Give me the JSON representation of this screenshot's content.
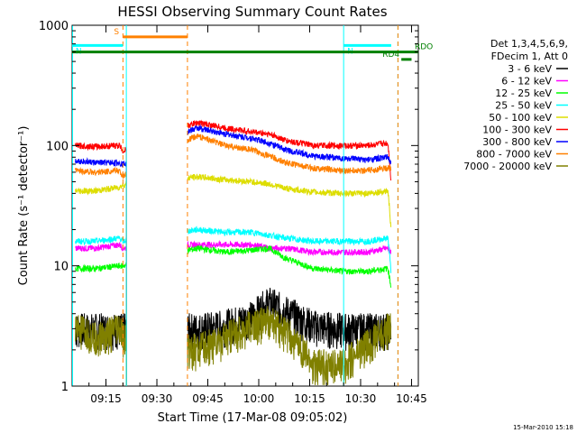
{
  "chart_data": {
    "type": "line",
    "title": "HESSI Observing Summary Count Rates",
    "xlabel": "Start Time (17-Mar-08 09:05:02)",
    "ylabel": "Count Rate (s⁻¹ detector⁻¹)",
    "yscale": "log",
    "ylim": [
      1,
      1000
    ],
    "xlim_minutes": [
      "09:05:02",
      "10:47:00"
    ],
    "x_ticks": [
      "09:15",
      "09:30",
      "09:45",
      "10:00",
      "10:15",
      "10:30",
      "10:45"
    ],
    "y_ticks": [
      "1",
      "10",
      "100",
      "1000"
    ],
    "legend": {
      "header1": "Det 1,3,4,5,6,9,",
      "header2": "FDecim 1, Att 0",
      "placement": "right"
    },
    "series": [
      {
        "name": "3 - 6 keV",
        "color": "#000000",
        "x": [
          "09:06",
          "09:12",
          "09:19",
          "09:20",
          "09:42",
          "09:50",
          "09:58",
          "10:03",
          "10:08",
          "10:16",
          "10:25",
          "10:32",
          "10:38",
          "10:39"
        ],
        "values": [
          3.0,
          3.0,
          3.0,
          3.0,
          3.0,
          3.2,
          3.8,
          5.0,
          4.2,
          3.2,
          3.0,
          3.0,
          3.0,
          3.0
        ]
      },
      {
        "name": "6 - 12 keV",
        "color": "#ff00ff",
        "x": [
          "09:06",
          "09:12",
          "09:19",
          "09:20",
          "09:42",
          "09:50",
          "09:58",
          "10:03",
          "10:08",
          "10:16",
          "10:25",
          "10:32",
          "10:38",
          "10:39"
        ],
        "values": [
          14,
          14,
          15,
          14,
          15,
          15,
          15,
          14,
          14,
          13,
          13,
          13,
          14,
          13
        ]
      },
      {
        "name": "12 - 25 keV",
        "color": "#00ff00",
        "x": [
          "09:06",
          "09:12",
          "09:19",
          "09:20",
          "09:42",
          "09:50",
          "09:58",
          "10:03",
          "10:08",
          "10:16",
          "10:25",
          "10:32",
          "10:38",
          "10:39"
        ],
        "values": [
          9.5,
          9.5,
          10,
          10,
          14,
          13,
          13.5,
          14,
          11.5,
          9.5,
          9.0,
          9.0,
          9.5,
          6.5
        ]
      },
      {
        "name": "25 - 50 keV",
        "color": "#00ffff",
        "x": [
          "09:06",
          "09:12",
          "09:19",
          "09:20",
          "09:42",
          "09:50",
          "09:58",
          "10:03",
          "10:08",
          "10:16",
          "10:25",
          "10:32",
          "10:38",
          "10:39"
        ],
        "values": [
          16,
          16,
          17,
          16,
          20,
          19,
          19,
          18,
          17,
          16,
          16,
          16,
          17,
          8
        ]
      },
      {
        "name": "50 - 100 keV",
        "color": "#dddd00",
        "x": [
          "09:06",
          "09:12",
          "09:19",
          "09:20",
          "09:42",
          "09:50",
          "09:58",
          "10:03",
          "10:08",
          "10:16",
          "10:25",
          "10:32",
          "10:38",
          "10:39"
        ],
        "values": [
          42,
          42,
          45,
          47,
          55,
          52,
          50,
          48,
          44,
          41,
          40,
          40,
          42,
          18
        ]
      },
      {
        "name": "100 - 300 keV",
        "color": "#ff0000",
        "x": [
          "09:06",
          "09:12",
          "09:19",
          "09:20",
          "09:42",
          "09:50",
          "09:58",
          "10:03",
          "10:08",
          "10:16",
          "10:25",
          "10:32",
          "10:38",
          "10:39"
        ],
        "values": [
          100,
          98,
          100,
          90,
          155,
          140,
          130,
          125,
          110,
          100,
          100,
          100,
          105,
          45
        ]
      },
      {
        "name": "300 - 800 keV",
        "color": "#0000ff",
        "x": [
          "09:06",
          "09:12",
          "09:19",
          "09:20",
          "09:42",
          "09:50",
          "09:58",
          "10:03",
          "10:08",
          "10:16",
          "10:25",
          "10:32",
          "10:38",
          "10:39"
        ],
        "values": [
          75,
          72,
          72,
          70,
          140,
          125,
          115,
          105,
          92,
          82,
          78,
          76,
          80,
          70
        ]
      },
      {
        "name": "800 - 7000 keV",
        "color": "#ff8000",
        "x": [
          "09:06",
          "09:12",
          "09:19",
          "09:20",
          "09:42",
          "09:50",
          "09:58",
          "10:03",
          "10:08",
          "10:16",
          "10:25",
          "10:32",
          "10:38",
          "10:39"
        ],
        "values": [
          62,
          60,
          62,
          55,
          120,
          100,
          92,
          82,
          72,
          65,
          62,
          62,
          65,
          65
        ]
      },
      {
        "name": "7000 - 20000 keV",
        "color": "#808000",
        "x": [
          "09:06",
          "09:12",
          "09:19",
          "09:20",
          "09:42",
          "09:50",
          "09:58",
          "10:03",
          "10:08",
          "10:16",
          "10:25",
          "10:32",
          "10:38",
          "10:39"
        ],
        "values": [
          3.0,
          2.5,
          3.0,
          2.5,
          2.0,
          2.5,
          3.2,
          3.5,
          2.8,
          1.5,
          1.5,
          2.2,
          3.0,
          3.0
        ]
      }
    ],
    "flags": [
      {
        "label": "S",
        "color": "#ff8000",
        "level": 800,
        "x": [
          "09:20",
          "09:39"
        ]
      },
      {
        "label": "N",
        "color": "#00ffff",
        "level": 680,
        "x": [
          "09:05",
          "09:20"
        ]
      },
      {
        "label": "N",
        "color": "#00ffff",
        "level": 680,
        "x": [
          "10:25",
          "10:39"
        ]
      },
      {
        "label": "RDO",
        "color": "#008000",
        "level": 600,
        "x": [
          "09:05",
          "10:47"
        ]
      },
      {
        "label": "RD4",
        "color": "#008000",
        "level": 520,
        "x": [
          "10:42",
          "10:45"
        ]
      }
    ],
    "vertical_lines": [
      {
        "x": "09:05:10",
        "color": "#00ffff",
        "style": "solid"
      },
      {
        "x": "09:20",
        "color": "#ff8000",
        "style": "dashed"
      },
      {
        "x": "09:21",
        "color": "#00ffff",
        "style": "solid"
      },
      {
        "x": "09:39",
        "color": "#ff8000",
        "style": "dashed"
      },
      {
        "x": "10:25",
        "color": "#00ffff",
        "style": "solid"
      },
      {
        "x": "10:41",
        "color": "#00ffff",
        "style": "dashed"
      },
      {
        "x": "10:41",
        "color": "#ff8000",
        "style": "dashed"
      }
    ],
    "gap": [
      "09:21",
      "09:39"
    ],
    "footer_date": "15-Mar-2010 15:18"
  },
  "colors": {
    "background": "#ffffff",
    "axes": "#000000"
  }
}
